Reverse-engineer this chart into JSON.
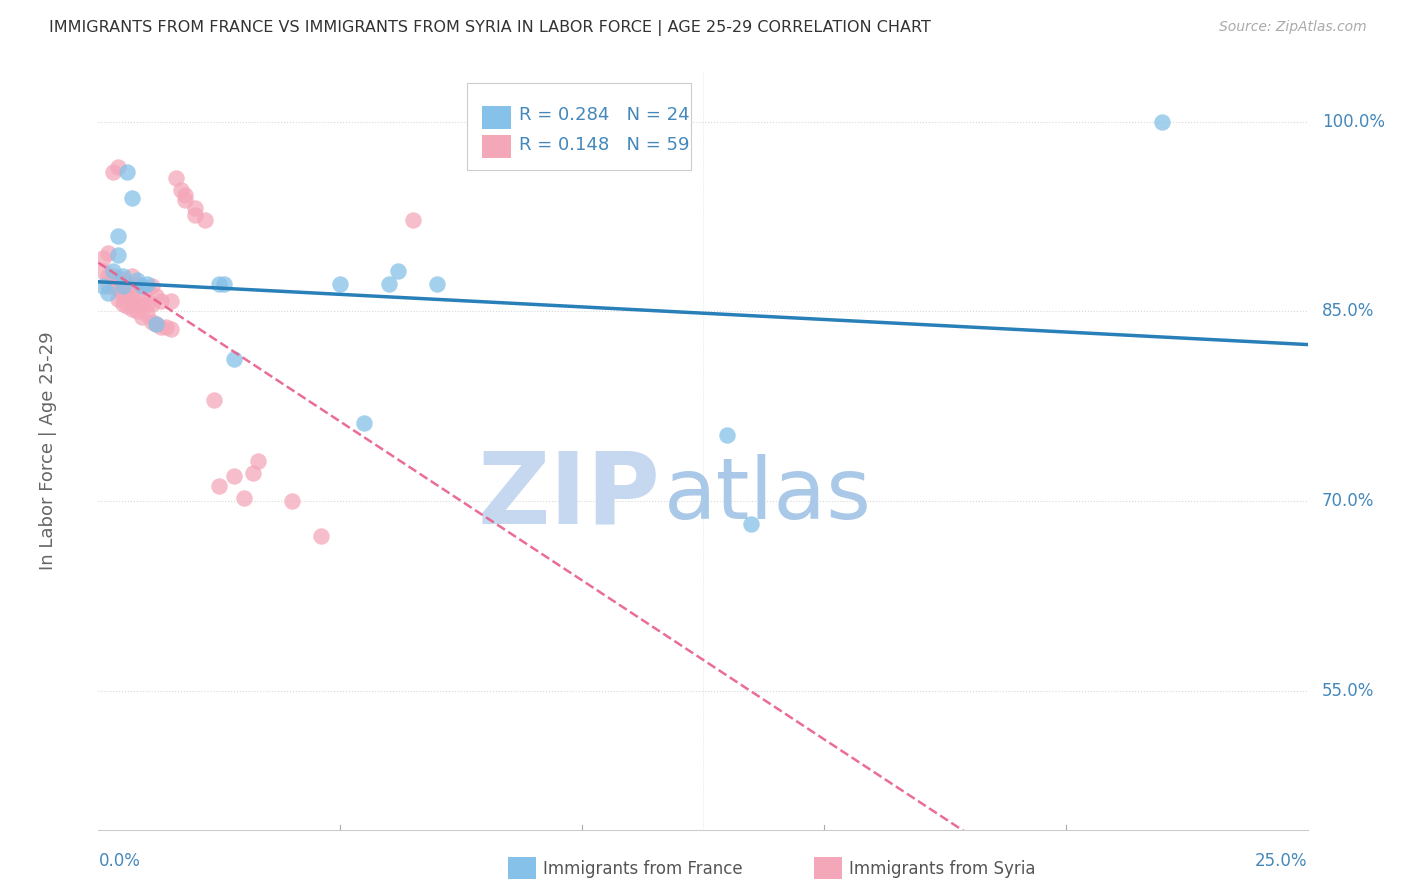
{
  "title": "IMMIGRANTS FROM FRANCE VS IMMIGRANTS FROM SYRIA IN LABOR FORCE | AGE 25-29 CORRELATION CHART",
  "source": "Source: ZipAtlas.com",
  "ylabel": "In Labor Force | Age 25-29",
  "ytick_labels": [
    "100.0%",
    "85.0%",
    "70.0%",
    "55.0%"
  ],
  "ytick_values": [
    1.0,
    0.85,
    0.7,
    0.55
  ],
  "xlim": [
    0.0,
    0.25
  ],
  "ylim": [
    0.44,
    1.04
  ],
  "france_R": 0.284,
  "france_N": 24,
  "syria_R": 0.148,
  "syria_N": 59,
  "legend_france": "Immigrants from France",
  "legend_syria": "Immigrants from Syria",
  "france_color": "#85c1e8",
  "syria_color": "#f4a7b9",
  "france_line_color": "#2980b9",
  "syria_line_color": "#e85d8a",
  "france_scatter_x": [
    0.001,
    0.002,
    0.003,
    0.004,
    0.004,
    0.005,
    0.005,
    0.006,
    0.007,
    0.008,
    0.009,
    0.01,
    0.012,
    0.025,
    0.026,
    0.028,
    0.05,
    0.055,
    0.06,
    0.062,
    0.07,
    0.13,
    0.135,
    0.22
  ],
  "france_scatter_y": [
    0.87,
    0.865,
    0.882,
    0.895,
    0.91,
    0.87,
    0.878,
    0.96,
    0.94,
    0.875,
    0.87,
    0.872,
    0.84,
    0.872,
    0.872,
    0.812,
    0.872,
    0.762,
    0.872,
    0.882,
    0.872,
    0.752,
    0.682,
    1.0
  ],
  "syria_scatter_x": [
    0.001,
    0.001,
    0.002,
    0.002,
    0.002,
    0.003,
    0.003,
    0.003,
    0.004,
    0.004,
    0.004,
    0.004,
    0.005,
    0.005,
    0.005,
    0.005,
    0.006,
    0.006,
    0.006,
    0.006,
    0.007,
    0.007,
    0.007,
    0.007,
    0.008,
    0.008,
    0.008,
    0.008,
    0.009,
    0.009,
    0.01,
    0.01,
    0.01,
    0.011,
    0.011,
    0.011,
    0.012,
    0.012,
    0.013,
    0.013,
    0.014,
    0.015,
    0.015,
    0.016,
    0.017,
    0.018,
    0.018,
    0.02,
    0.02,
    0.022,
    0.024,
    0.025,
    0.028,
    0.03,
    0.032,
    0.033,
    0.04,
    0.046,
    0.065
  ],
  "syria_scatter_y": [
    0.882,
    0.892,
    0.87,
    0.878,
    0.896,
    0.87,
    0.878,
    0.96,
    0.86,
    0.868,
    0.876,
    0.964,
    0.856,
    0.862,
    0.868,
    0.876,
    0.854,
    0.86,
    0.866,
    0.872,
    0.852,
    0.858,
    0.864,
    0.878,
    0.85,
    0.856,
    0.864,
    0.872,
    0.846,
    0.856,
    0.848,
    0.856,
    0.868,
    0.842,
    0.856,
    0.87,
    0.84,
    0.862,
    0.838,
    0.858,
    0.838,
    0.836,
    0.858,
    0.956,
    0.946,
    0.938,
    0.942,
    0.932,
    0.926,
    0.922,
    0.78,
    0.712,
    0.72,
    0.702,
    0.722,
    0.732,
    0.7,
    0.672,
    0.922
  ],
  "background_color": "#ffffff",
  "grid_color": "#d8d8d8",
  "title_color": "#333333",
  "axis_label_color": "#666666",
  "tick_color": "#4488bb",
  "watermark_zip_color": "#c5d8f0",
  "watermark_atlas_color": "#aac8e8"
}
